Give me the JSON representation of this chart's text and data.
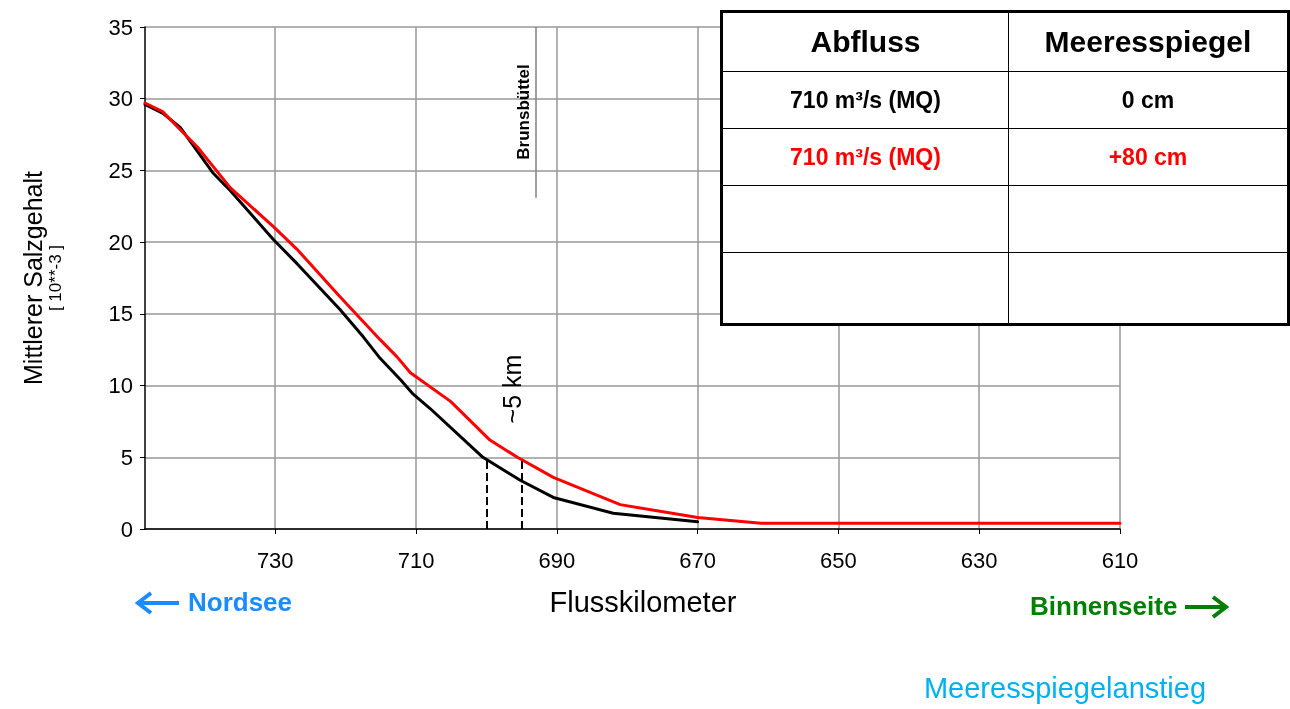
{
  "chart_data": {
    "type": "line",
    "xlabel": "Flusskilometer",
    "ylabel": "Mittlerer Salzgehalt\n[ 10**-3 ]",
    "xlim": [
      748.5,
      610
    ],
    "xticks": [
      730,
      710,
      690,
      670,
      650,
      630,
      610
    ],
    "ylim": [
      0,
      35
    ],
    "yticks": [
      0,
      5,
      10,
      15,
      20,
      25,
      30,
      35
    ],
    "grid": true,
    "legend": "top right",
    "line_style": "solid",
    "marker": "none",
    "series": [
      {
        "name": "0 cm",
        "color": "#000000",
        "x": [
          748.5,
          746,
          743.5,
          738.8,
          736.4,
          730.3,
          726.9,
          720.8,
          717.5,
          715.1,
          712.2,
          710.4,
          708,
          700.5,
          695.2,
          690.5,
          682,
          670
        ],
        "values": [
          29.6,
          29,
          28,
          24.8,
          23.6,
          20.2,
          18.5,
          15.3,
          13.4,
          11.9,
          10.4,
          9.4,
          8.4,
          5,
          3.4,
          2.2,
          1.1,
          0.5
        ]
      },
      {
        "name": "+80 cm",
        "color": "#ff0000",
        "x": [
          748.5,
          746,
          741,
          736.4,
          730.3,
          726.9,
          720.8,
          715.1,
          712.7,
          710.8,
          705.1,
          699.5,
          695.6,
          690.5,
          681,
          670,
          661,
          650,
          630,
          610
        ],
        "values": [
          29.7,
          29.1,
          26.6,
          23.8,
          21.1,
          19.5,
          16.2,
          13.2,
          12,
          10.9,
          8.9,
          6.2,
          5,
          3.6,
          1.7,
          0.8,
          0.4,
          0.4,
          0.4,
          0.4
        ]
      }
    ],
    "ref_lines": [
      {
        "axis": "x",
        "value": 693,
        "label": "Brunsbüttel",
        "color": "#808080",
        "line_style": "solid"
      },
      {
        "axis": "x",
        "value": 700,
        "label": null,
        "color": "#000000",
        "line_style": "dashed"
      },
      {
        "axis": "x",
        "value": 695,
        "label": null,
        "color": "#000000",
        "line_style": "dashed"
      }
    ],
    "annotations": [
      "Abfluss",
      "Meeresspiegel",
      "710 m³/s (MQ)",
      "710 m³/s (MQ)",
      "~5 km",
      "Nordsee",
      "Binnenseite",
      "Meeresspiegelanstieg"
    ]
  }
}
